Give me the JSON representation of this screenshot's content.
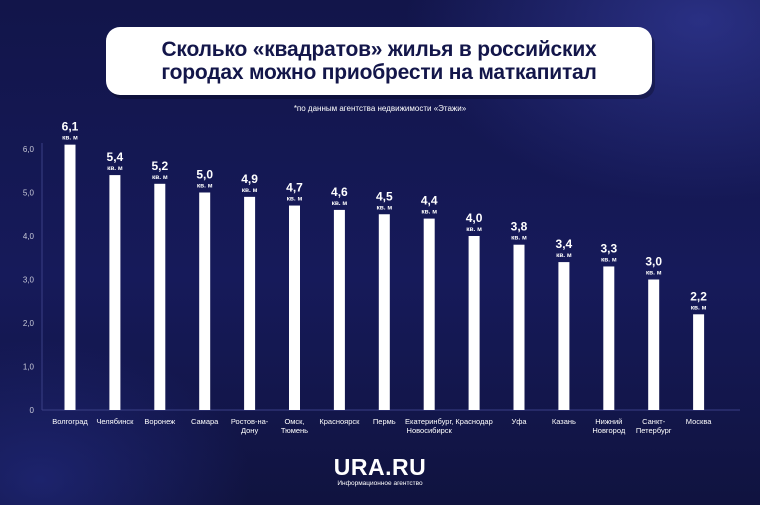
{
  "title": "Сколько «квадратов» жилья в российских\nгородах можно приобрести на маткапитал",
  "source_note": "*по данным агентства недвижимости «Этажи»",
  "logo": {
    "name": "URA.RU",
    "subtitle": "Информационное агентство"
  },
  "colors": {
    "background": "#13164a",
    "bar": "#ffffff",
    "axis": "#3a3f85",
    "text": "#ffffff",
    "title_text": "#13164a"
  },
  "chart_data": {
    "type": "bar",
    "categories": [
      "Волгоград",
      "Челябинск",
      "Воронеж",
      "Самара",
      "Ростов-на-\nДону",
      "Омск,\nТюмень",
      "Красноярск",
      "Пермь",
      "Екатеринбург,\nНовосибирск",
      "Краснодар",
      "Уфа",
      "Казань",
      "Нижний\nНовгород",
      "Санкт-\nПетербург",
      "Москва"
    ],
    "values": [
      6.1,
      5.4,
      5.2,
      5.0,
      4.9,
      4.7,
      4.6,
      4.5,
      4.4,
      4.0,
      3.8,
      3.4,
      3.3,
      3.0,
      2.2
    ],
    "value_labels": [
      "6,1",
      "5,4",
      "5,2",
      "5,0",
      "4,9",
      "4,7",
      "4,6",
      "4,5",
      "4,4",
      "4,0",
      "3,8",
      "3,4",
      "3,3",
      "3,0",
      "2,2"
    ],
    "unit_label": "кв. м",
    "yticks": [
      "0",
      "1,0",
      "2,0",
      "3,0",
      "4,0",
      "5,0",
      "6,0"
    ],
    "ylim": [
      0,
      6
    ],
    "grid": false
  }
}
